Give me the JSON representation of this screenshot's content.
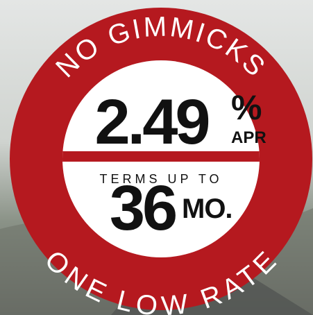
{
  "badge": {
    "top_arc": "NO GIMMICKS",
    "rate": "2.49",
    "percent": "%",
    "apr": "APR",
    "terms_label": "TERMS UP TO",
    "term": "36",
    "term_unit": "MO.",
    "bottom_arc": "ONE LOW RATE"
  }
}
